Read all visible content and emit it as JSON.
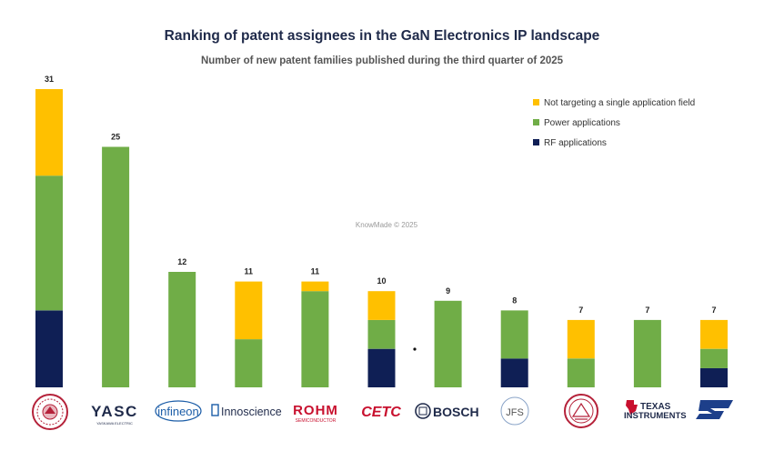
{
  "chart_data": {
    "type": "bar",
    "stacked": true,
    "title": "Ranking of patent assignees in the GaN Electronics IP landscape",
    "subtitle": "Number of new patent families published during the third quarter of 2025",
    "categories": [
      "",
      "YASC",
      "infineon",
      "Innoscience",
      "ROHM",
      "CETC",
      "BOSCH",
      "JFS",
      "",
      "TEXAS INSTRUMENTS",
      "ST"
    ],
    "series": [
      {
        "name": "RF applications",
        "color": "#0f1f55",
        "values": [
          8,
          0,
          0,
          0,
          0,
          4,
          0,
          3,
          0,
          0,
          2
        ]
      },
      {
        "name": "Power applications",
        "color": "#70ad47",
        "values": [
          14,
          25,
          12,
          5,
          10,
          3,
          9,
          5,
          3,
          7,
          2
        ]
      },
      {
        "name": "Not targeting a single application field",
        "color": "#ffc000",
        "values": [
          9,
          0,
          0,
          6,
          1,
          3,
          0,
          0,
          4,
          0,
          3
        ]
      }
    ],
    "totals": [
      31,
      25,
      12,
      11,
      11,
      10,
      9,
      8,
      7,
      7,
      7
    ],
    "ylim": [
      0,
      31
    ],
    "legend_order": [
      "Not targeting a single application field",
      "Power applications",
      "RF applications"
    ],
    "legend_position": "top-right",
    "grid": false,
    "watermark": "KnowMade © 2025"
  },
  "logos": {
    "yasc": "YASC",
    "yasc_sub": "YASKAWA ELECTRIC",
    "infineon": "infineon",
    "innoscience": "Innoscience",
    "rohm": "ROHM",
    "rohm_sub": "SEMICONDUCTOR",
    "cetc": "CETC",
    "bosch": "BOSCH",
    "jfs": "JFS",
    "ti_line1": "TEXAS",
    "ti_line2": "INSTRUMENTS",
    "st": "ST"
  }
}
